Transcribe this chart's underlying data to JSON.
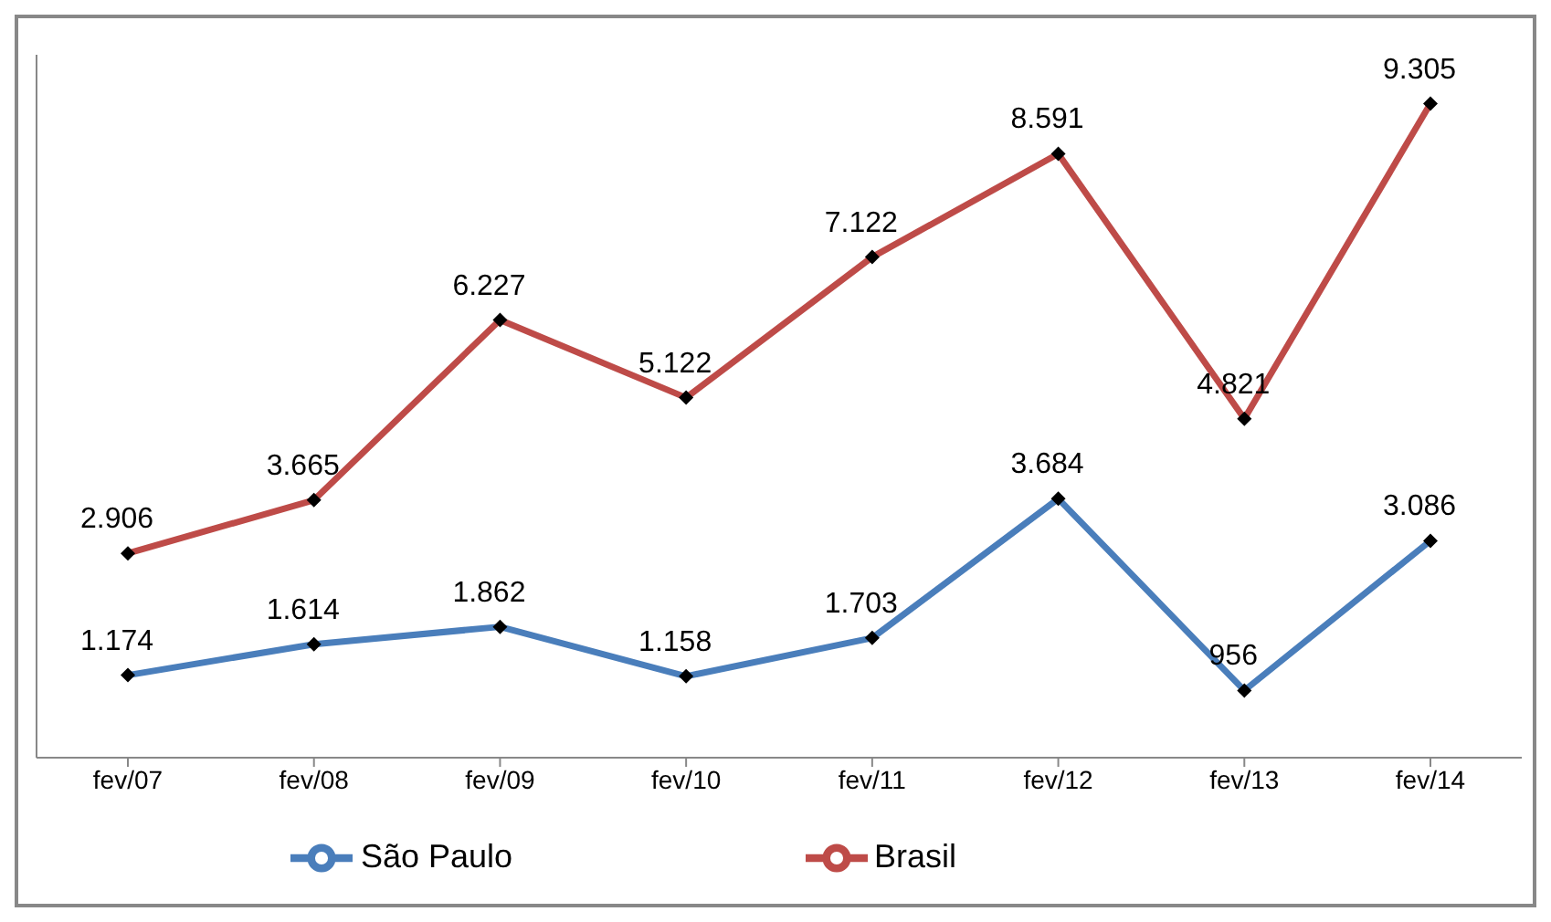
{
  "chart_data": {
    "type": "line",
    "categories": [
      "fev/07",
      "fev/08",
      "fev/09",
      "fev/10",
      "fev/11",
      "fev/12",
      "fev/13",
      "fev/14"
    ],
    "series": [
      {
        "name": "São Paulo",
        "color": "#4a7ebb",
        "values": [
          1174,
          1614,
          1862,
          1158,
          1703,
          3684,
          956,
          3086
        ],
        "value_labels": [
          "1.174",
          "1.614",
          "1.862",
          "1.158",
          "1.703",
          "3.684",
          "956",
          "3.086"
        ]
      },
      {
        "name": "Brasil",
        "color": "#be4b48",
        "values": [
          2906,
          3665,
          6227,
          5122,
          7122,
          8591,
          4821,
          9305
        ],
        "value_labels": [
          "2.906",
          "3.665",
          "6.227",
          "5.122",
          "7.122",
          "8.591",
          "4.821",
          "9.305"
        ]
      }
    ],
    "ylim": [
      0,
      10000
    ],
    "tick_labels": "x",
    "marker": "diamond",
    "line_style": "solid",
    "grid": false,
    "legend": "bottom"
  }
}
